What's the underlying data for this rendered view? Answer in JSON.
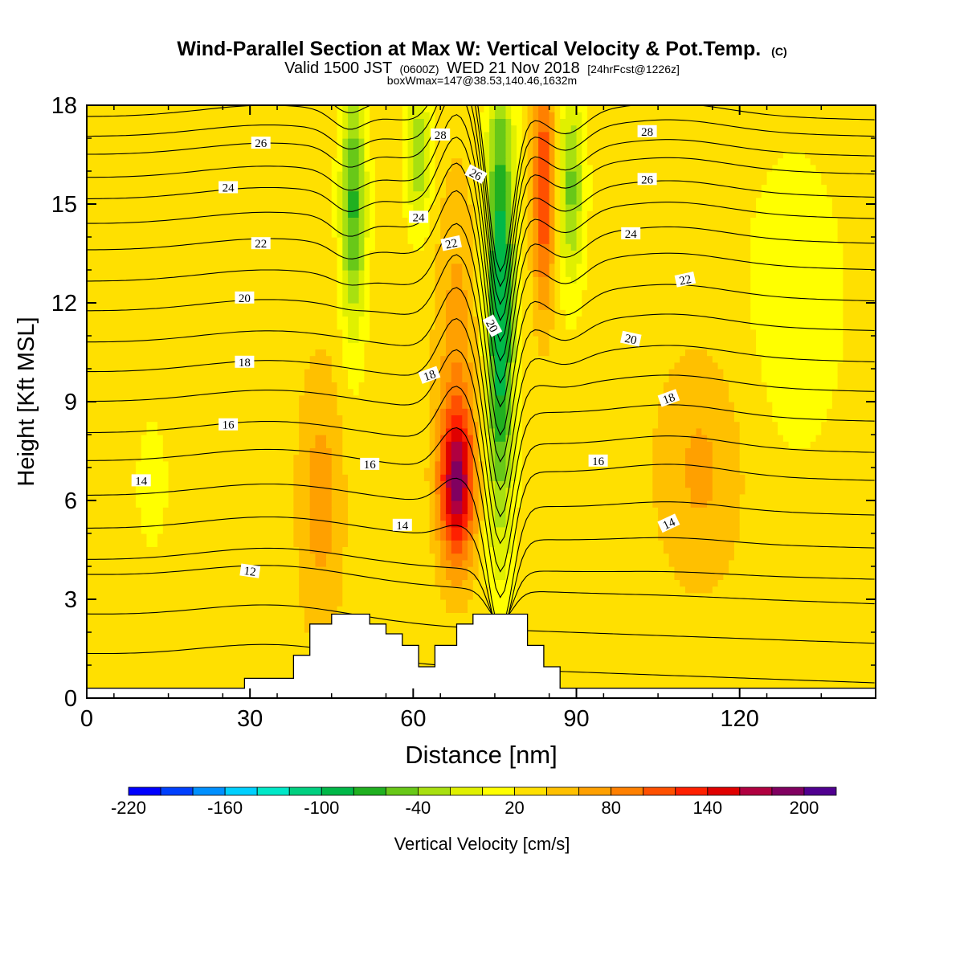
{
  "chart_data": {
    "type": "heatmap",
    "title": "Wind-Parallel Section at Max W: Vertical Velocity & Pot.Temp.",
    "copyright": "(C)",
    "subtitle_parts": {
      "valid": "Valid 1500 JST",
      "zulu": "(0600Z)",
      "date": "WED 21 Nov 2018",
      "forecast": "[24hrFcst@1226z]"
    },
    "info_line": "boxWmax=147@38.53,140.46,1632m",
    "xlabel": "Distance [nm]",
    "ylabel": "Height [Kft MSL]",
    "xlim": [
      0,
      145
    ],
    "ylim": [
      0,
      18
    ],
    "x_ticks": [
      {
        "value": 0,
        "label": "0"
      },
      {
        "value": 30,
        "label": "30"
      },
      {
        "value": 60,
        "label": "60"
      },
      {
        "value": 90,
        "label": "90"
      },
      {
        "value": 120,
        "label": "120"
      }
    ],
    "y_ticks": [
      {
        "value": 0,
        "label": "0"
      },
      {
        "value": 3,
        "label": "3"
      },
      {
        "value": 6,
        "label": "6"
      },
      {
        "value": 9,
        "label": "9"
      },
      {
        "value": 12,
        "label": "12"
      },
      {
        "value": 15,
        "label": "15"
      },
      {
        "value": 18,
        "label": "18"
      }
    ],
    "colorbar": {
      "label": "Vertical Velocity [cm/s]",
      "tick_labels": [
        {
          "value": -220,
          "label": "-220"
        },
        {
          "value": -160,
          "label": "-160"
        },
        {
          "value": -100,
          "label": "-100"
        },
        {
          "value": -40,
          "label": "-40"
        },
        {
          "value": 20,
          "label": "20"
        },
        {
          "value": 80,
          "label": "80"
        },
        {
          "value": 140,
          "label": "140"
        },
        {
          "value": 200,
          "label": "200"
        }
      ],
      "bins": [
        {
          "from": -220,
          "to": -200,
          "color": "#0000ff"
        },
        {
          "from": -200,
          "to": -180,
          "color": "#0040ff"
        },
        {
          "from": -180,
          "to": -160,
          "color": "#0090ff"
        },
        {
          "from": -160,
          "to": -140,
          "color": "#00d0ff"
        },
        {
          "from": -140,
          "to": -120,
          "color": "#00e8c8"
        },
        {
          "from": -120,
          "to": -100,
          "color": "#00d080"
        },
        {
          "from": -100,
          "to": -80,
          "color": "#00b848"
        },
        {
          "from": -80,
          "to": -60,
          "color": "#20b020"
        },
        {
          "from": -60,
          "to": -40,
          "color": "#68c818"
        },
        {
          "from": -40,
          "to": -20,
          "color": "#a8e010"
        },
        {
          "from": -20,
          "to": 0,
          "color": "#e0f000"
        },
        {
          "from": 0,
          "to": 20,
          "color": "#ffff00"
        },
        {
          "from": 20,
          "to": 40,
          "color": "#ffe000"
        },
        {
          "from": 40,
          "to": 60,
          "color": "#ffc000"
        },
        {
          "from": 60,
          "to": 80,
          "color": "#ffa000"
        },
        {
          "from": 80,
          "to": 100,
          "color": "#ff8000"
        },
        {
          "from": 100,
          "to": 120,
          "color": "#ff5000"
        },
        {
          "from": 120,
          "to": 140,
          "color": "#ff2000"
        },
        {
          "from": 140,
          "to": 160,
          "color": "#e00000"
        },
        {
          "from": 160,
          "to": 180,
          "color": "#b00040"
        },
        {
          "from": 180,
          "to": 200,
          "color": "#800060"
        },
        {
          "from": 200,
          "to": 220,
          "color": "#500090"
        }
      ]
    },
    "background_velocity": 30,
    "velocity_features": [
      {
        "kind": "updraft",
        "x": 68,
        "y": 6.5,
        "sx": 3.2,
        "sy": 2.3,
        "amp": 140
      },
      {
        "kind": "updraft",
        "x": 68,
        "y": 10.5,
        "sx": 3.8,
        "sy": 5,
        "amp": 40
      },
      {
        "kind": "updraft",
        "x": 84,
        "y": 15.5,
        "sx": 2,
        "sy": 3.5,
        "amp": 95
      },
      {
        "kind": "updraft",
        "x": 43,
        "y": 6,
        "sx": 4,
        "sy": 4,
        "amp": 40
      },
      {
        "kind": "updraft",
        "x": 113,
        "y": 7,
        "sx": 8,
        "sy": 3.5,
        "amp": 35
      },
      {
        "kind": "downdraft",
        "x": 76,
        "y": 12,
        "sx": 2.6,
        "sy": 7,
        "amp": -135
      },
      {
        "kind": "downdraft",
        "x": 49,
        "y": 15,
        "sx": 2.4,
        "sy": 4,
        "amp": -95
      },
      {
        "kind": "downdraft",
        "x": 61,
        "y": 16.5,
        "sx": 2.3,
        "sy": 2.2,
        "amp": -70
      },
      {
        "kind": "downdraft",
        "x": 89,
        "y": 15.5,
        "sx": 2.5,
        "sy": 3,
        "amp": -75
      },
      {
        "kind": "downdraft",
        "x": 12,
        "y": 6.5,
        "sx": 3.5,
        "sy": 2.5,
        "amp": -18
      },
      {
        "kind": "downdraft",
        "x": 130,
        "y": 12,
        "sx": 12,
        "sy": 6,
        "amp": -18
      }
    ],
    "terrain": [
      [
        0,
        0.3
      ],
      [
        29,
        0.3
      ],
      [
        29,
        0.6
      ],
      [
        38,
        0.6
      ],
      [
        38,
        1.3
      ],
      [
        41,
        1.3
      ],
      [
        41,
        2.25
      ],
      [
        45,
        2.25
      ],
      [
        45,
        2.55
      ],
      [
        52,
        2.55
      ],
      [
        52,
        2.25
      ],
      [
        55,
        2.25
      ],
      [
        55,
        1.95
      ],
      [
        58,
        1.95
      ],
      [
        58,
        1.6
      ],
      [
        61,
        1.6
      ],
      [
        61,
        0.95
      ],
      [
        64,
        0.95
      ],
      [
        64,
        1.6
      ],
      [
        68,
        1.6
      ],
      [
        68,
        2.25
      ],
      [
        71,
        2.25
      ],
      [
        71,
        2.55
      ],
      [
        81,
        2.55
      ],
      [
        81,
        1.6
      ],
      [
        84,
        1.6
      ],
      [
        84,
        0.95
      ],
      [
        87,
        0.95
      ],
      [
        87,
        0.3
      ],
      [
        145,
        0.3
      ]
    ],
    "theta_isentropes": [
      {
        "value": 12,
        "z": 3.9,
        "labeled": true
      },
      {
        "value": 13,
        "z": 4.85
      },
      {
        "value": 14,
        "z": 5.85,
        "labeled": true
      },
      {
        "value": 15,
        "z": 6.9
      },
      {
        "value": 16,
        "z": 7.75,
        "labeled": true
      },
      {
        "value": 17,
        "z": 8.7
      },
      {
        "value": 18,
        "z": 9.6,
        "labeled": true
      },
      {
        "value": 19,
        "z": 10.5
      },
      {
        "value": 20,
        "z": 11.45,
        "labeled": true
      },
      {
        "value": 21,
        "z": 12.35
      },
      {
        "value": 22,
        "z": 13.3,
        "labeled": true
      },
      {
        "value": 23,
        "z": 14.1
      },
      {
        "value": 24,
        "z": 14.85,
        "labeled": true
      },
      {
        "value": 25,
        "z": 15.5
      },
      {
        "value": 26,
        "z": 16.2,
        "labeled": true
      },
      {
        "value": 27,
        "z": 16.75
      },
      {
        "value": 28,
        "z": 17.35,
        "labeled": true
      },
      {
        "value": 29,
        "z": 17.85
      }
    ],
    "low_contour_band": {
      "from": 0.9,
      "to": 3.3,
      "count": 3
    },
    "contour_labels": [
      {
        "text": "12",
        "x": 30,
        "y": 3.85,
        "angle": 8
      },
      {
        "text": "14",
        "x": 10,
        "y": 6.6,
        "angle": 0
      },
      {
        "text": "14",
        "x": 58,
        "y": 5.25,
        "angle": 0
      },
      {
        "text": "14",
        "x": 107,
        "y": 5.3,
        "angle": -25
      },
      {
        "text": "16",
        "x": 26,
        "y": 8.3,
        "angle": 0
      },
      {
        "text": "16",
        "x": 52,
        "y": 7.1,
        "angle": 0
      },
      {
        "text": "16",
        "x": 94,
        "y": 7.2,
        "angle": 0
      },
      {
        "text": "18",
        "x": 29,
        "y": 10.2,
        "angle": 0
      },
      {
        "text": "18",
        "x": 63,
        "y": 9.8,
        "angle": -20
      },
      {
        "text": "18",
        "x": 107,
        "y": 9.1,
        "angle": -20
      },
      {
        "text": "20",
        "x": 29,
        "y": 12.15,
        "angle": 0
      },
      {
        "text": "20",
        "x": 74.5,
        "y": 11.3,
        "angle": 62
      },
      {
        "text": "20",
        "x": 100,
        "y": 10.9,
        "angle": 12
      },
      {
        "text": "22",
        "x": 32,
        "y": 13.8,
        "angle": 0
      },
      {
        "text": "22",
        "x": 67,
        "y": 13.8,
        "angle": -12
      },
      {
        "text": "22",
        "x": 110,
        "y": 12.7,
        "angle": -12
      },
      {
        "text": "24",
        "x": 26,
        "y": 15.5,
        "angle": 0
      },
      {
        "text": "24",
        "x": 61,
        "y": 14.6,
        "angle": 0
      },
      {
        "text": "24",
        "x": 100,
        "y": 14.1,
        "angle": 0
      },
      {
        "text": "26",
        "x": 32,
        "y": 16.85,
        "angle": 0
      },
      {
        "text": "26",
        "x": 71.5,
        "y": 15.9,
        "angle": 28
      },
      {
        "text": "26",
        "x": 103,
        "y": 15.75,
        "angle": 0
      },
      {
        "text": "28",
        "x": 65,
        "y": 17.1,
        "angle": 0
      },
      {
        "text": "28",
        "x": 103,
        "y": 17.2,
        "angle": 0
      }
    ]
  }
}
